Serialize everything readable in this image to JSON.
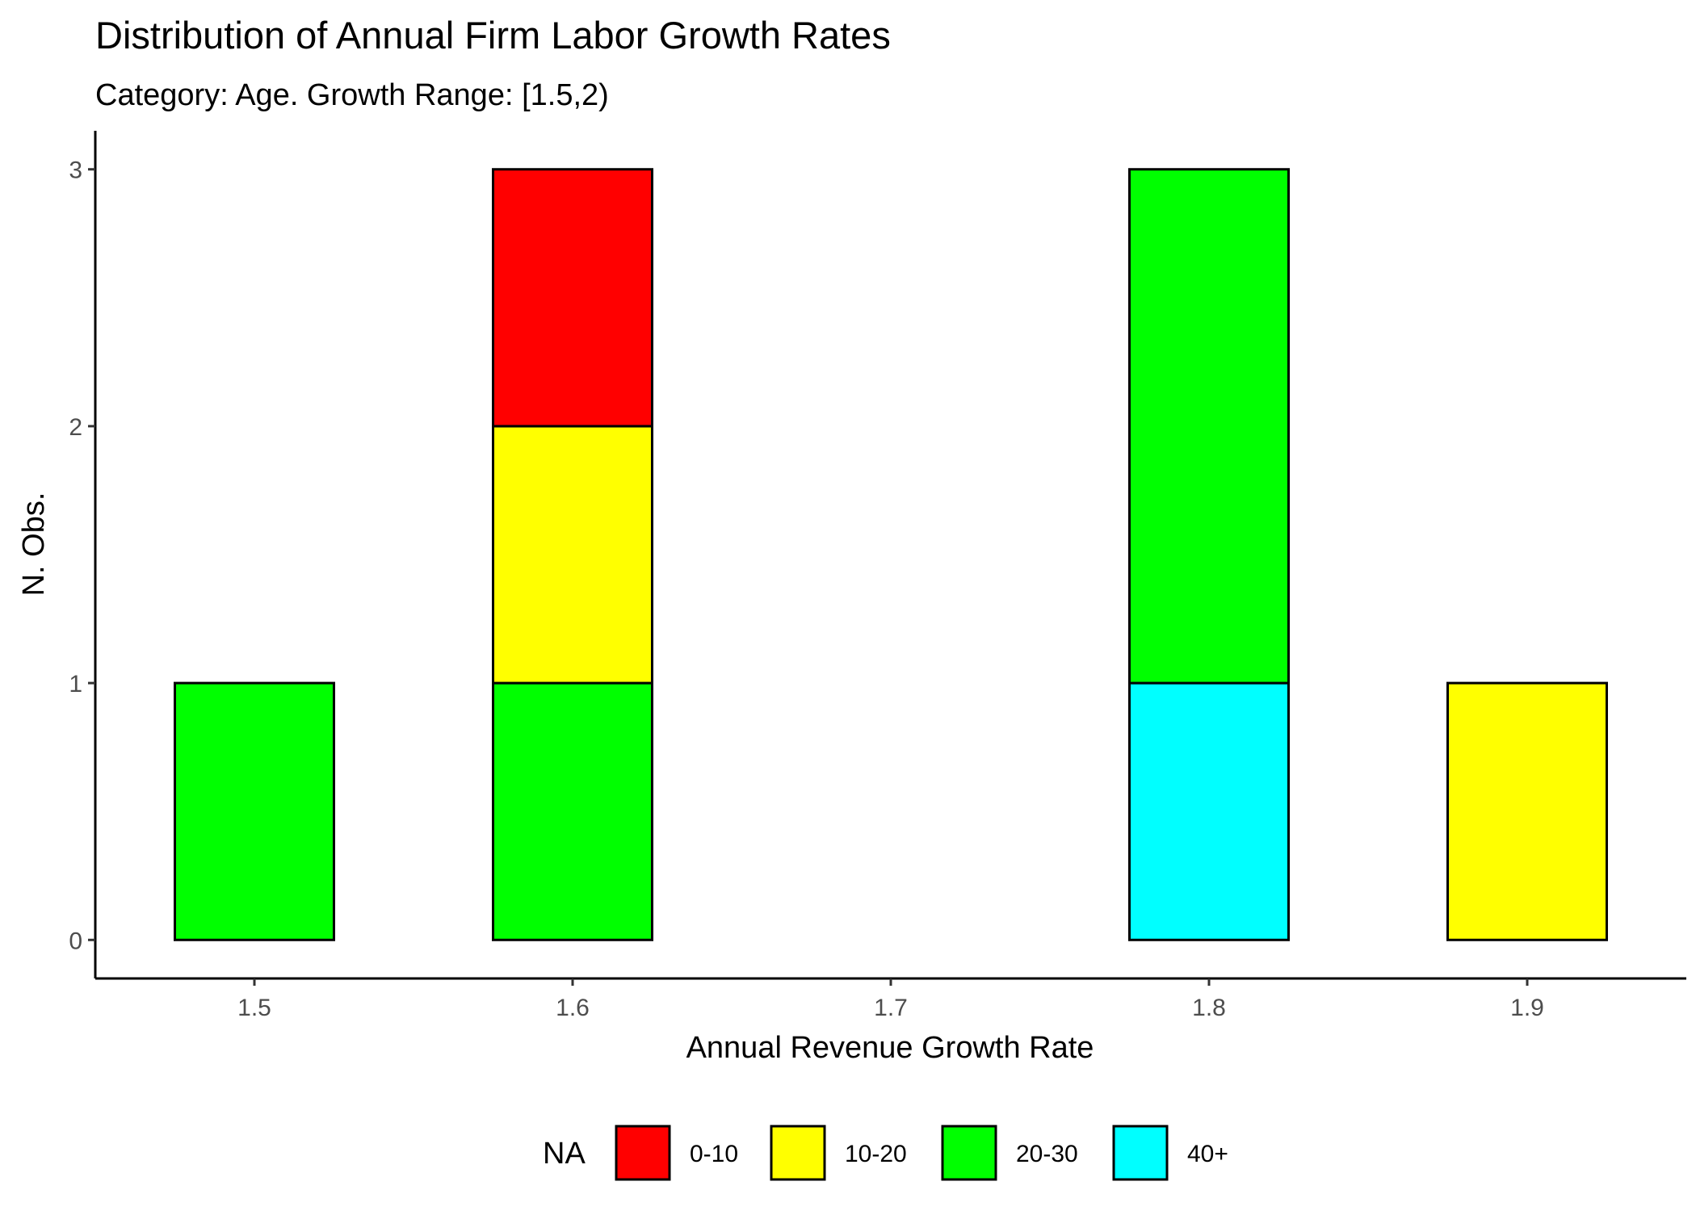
{
  "chart_data": {
    "type": "bar",
    "stacked": true,
    "title": "Distribution of Annual Firm Labor Growth Rates",
    "subtitle": "Category: Age. Growth Range: [1.5,2)",
    "xlabel": "Annual Revenue Growth Rate",
    "ylabel": "N. Obs.",
    "xlim": [
      1.45,
      1.95
    ],
    "ylim": [
      -0.15,
      3.15
    ],
    "x_ticks": [
      1.5,
      1.6,
      1.7,
      1.8,
      1.9
    ],
    "x_tick_labels": [
      "1.5",
      "1.6",
      "1.7",
      "1.8",
      "1.9"
    ],
    "y_ticks": [
      0,
      1,
      2,
      3
    ],
    "y_tick_labels": [
      "0",
      "1",
      "2",
      "3"
    ],
    "bin_width": 0.05,
    "bins": [
      1.5,
      1.55,
      1.6,
      1.65,
      1.7,
      1.75,
      1.8,
      1.85,
      1.9
    ],
    "series": [
      {
        "name": "0-10",
        "color": "#FF0000",
        "values": [
          0,
          0,
          1,
          0,
          0,
          0,
          0,
          0,
          0
        ]
      },
      {
        "name": "10-20",
        "color": "#FFFF00",
        "values": [
          0,
          0,
          1,
          0,
          0,
          0,
          0,
          0,
          1
        ]
      },
      {
        "name": "20-30",
        "color": "#00FF00",
        "values": [
          1,
          0,
          1,
          0,
          0,
          0,
          2,
          0,
          0
        ]
      },
      {
        "name": "40+",
        "color": "#00FFFF",
        "values": [
          0,
          0,
          0,
          0,
          0,
          0,
          1,
          0,
          0
        ]
      }
    ],
    "legend": {
      "title": "NA",
      "position": "bottom"
    },
    "grid": false,
    "bar_outline_color": "#000000"
  }
}
